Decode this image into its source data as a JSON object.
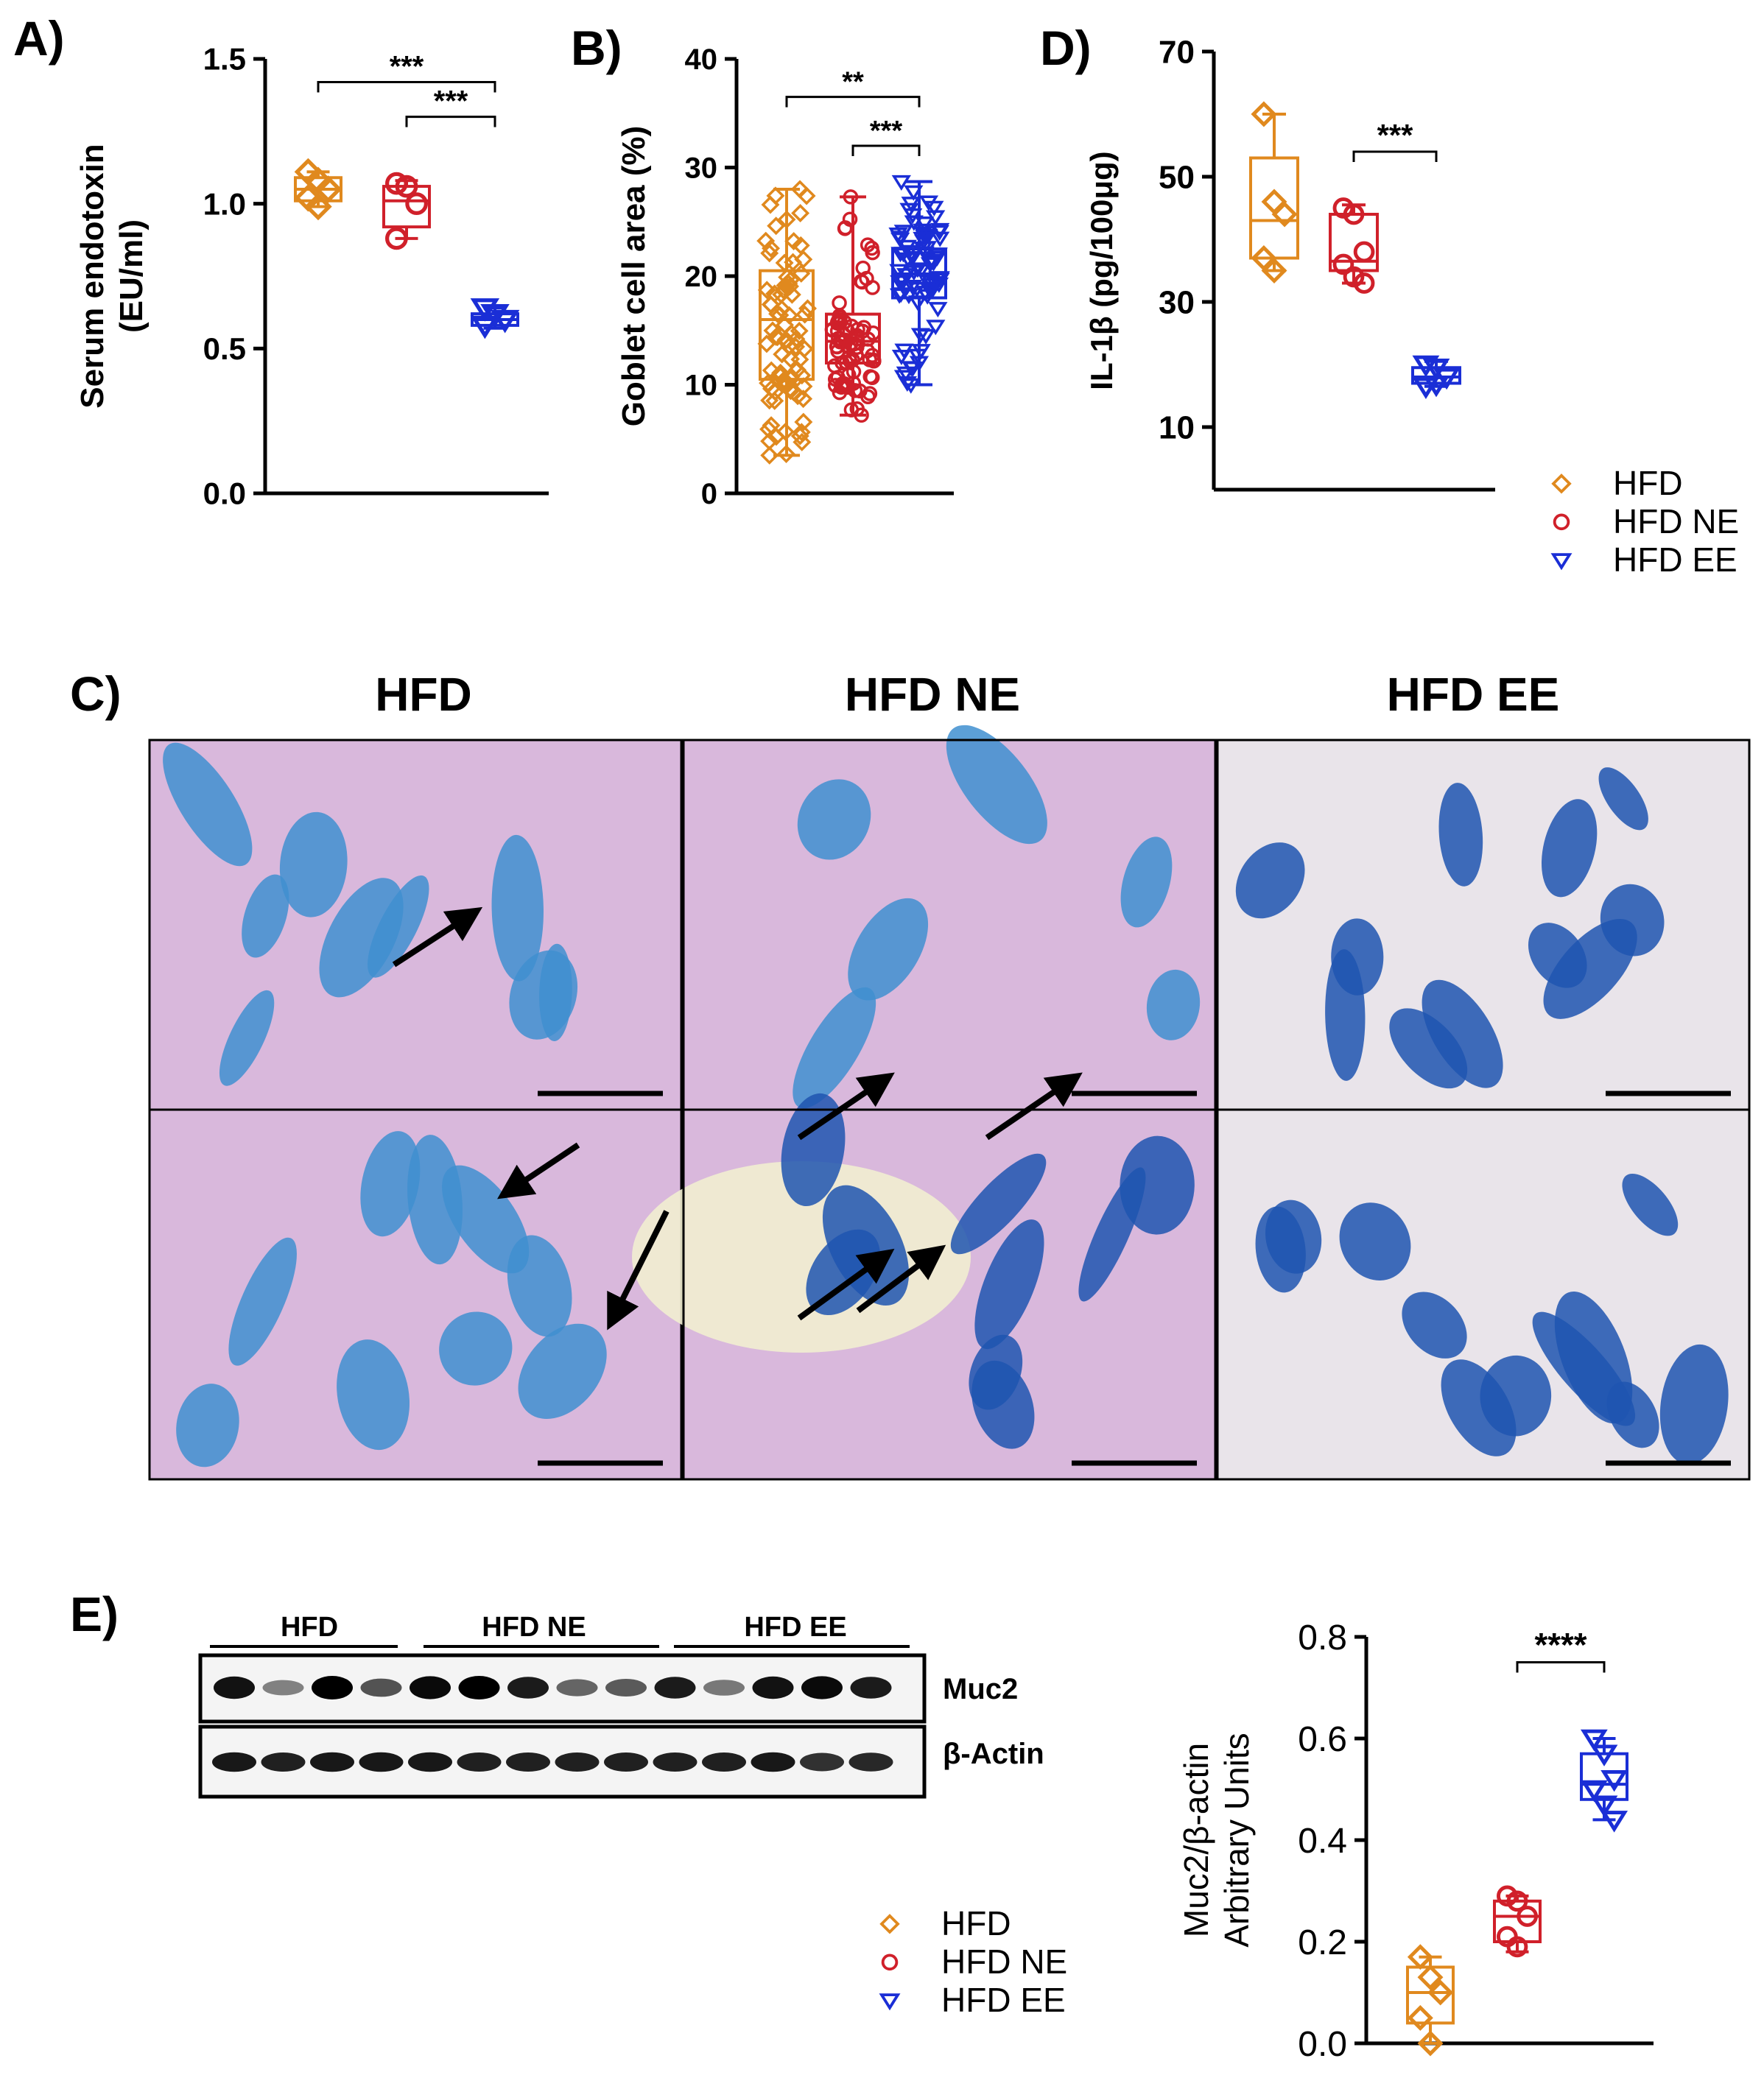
{
  "panel_labels": {
    "A": "A)",
    "B": "B)",
    "C": "C)",
    "D": "D)",
    "E": "E)"
  },
  "groups": [
    "HFD",
    "HFD NE",
    "HFD EE"
  ],
  "colors": {
    "HFD": "#e0891e",
    "HFD NE": "#d0202a",
    "HFD EE": "#1a2ed6"
  },
  "legend_top": {
    "items": [
      "HFD",
      "HFD NE",
      "HFD EE"
    ]
  },
  "legend_bottom": {
    "items": [
      "HFD",
      "HFD NE",
      "HFD EE"
    ]
  },
  "histology": {
    "column_titles": [
      "HFD",
      "HFD NE",
      "HFD EE"
    ],
    "stain_colors": {
      "background": "#d9b8dc",
      "crypt": "#3f8fd0",
      "dark_crypt": "#1e55b0",
      "lumen": "#f1eed0"
    }
  },
  "blot": {
    "group_labels": [
      "HFD",
      "HFD NE",
      "HFD EE"
    ],
    "band_labels": [
      "Muc2",
      "β-Actin"
    ],
    "muc2_intensity": [
      0.9,
      0.3,
      1.0,
      0.55,
      0.95,
      1.0,
      0.85,
      0.45,
      0.5,
      0.85,
      0.35,
      0.9,
      0.95,
      0.85
    ],
    "actin_intensity": [
      0.85,
      0.8,
      0.85,
      0.85,
      0.85,
      0.8,
      0.8,
      0.8,
      0.8,
      0.8,
      0.8,
      0.85,
      0.7,
      0.75
    ]
  },
  "chart_data": [
    {
      "id": "A",
      "type": "box",
      "ylabel": "Serum endotoxin\n(EU/ml)",
      "ylim": [
        0,
        1.5
      ],
      "yticks": [
        "0.0",
        "0.5",
        "1.0",
        "1.5"
      ],
      "series": [
        {
          "name": "HFD",
          "marker": "diamond",
          "box": {
            "min": 0.99,
            "q1": 1.01,
            "median": 1.05,
            "q3": 1.09,
            "max": 1.11
          },
          "points": [
            1.11,
            1.08,
            1.05,
            1.02,
            0.99
          ]
        },
        {
          "name": "HFD NE",
          "marker": "circle",
          "box": {
            "min": 0.88,
            "q1": 0.92,
            "median": 1.01,
            "q3": 1.06,
            "max": 1.08
          },
          "points": [
            1.07,
            1.06,
            1.0,
            0.88
          ]
        },
        {
          "name": "HFD EE",
          "marker": "triangle",
          "box": {
            "min": 0.57,
            "q1": 0.58,
            "median": 0.6,
            "q3": 0.62,
            "max": 0.64
          },
          "points": [
            0.64,
            0.62,
            0.6,
            0.58
          ]
        }
      ],
      "significance": [
        {
          "from": 0,
          "to": 2,
          "label": "***",
          "y": 1.42
        },
        {
          "from": 1,
          "to": 2,
          "label": "***",
          "y": 1.3
        }
      ]
    },
    {
      "id": "B",
      "type": "box",
      "ylabel": "Goblet cell area (%)",
      "ylim": [
        0,
        40
      ],
      "yticks": [
        "0",
        "10",
        "20",
        "30",
        "40"
      ],
      "series": [
        {
          "name": "HFD",
          "marker": "diamond",
          "box": {
            "min": 3.5,
            "q1": 10.5,
            "median": 16,
            "q3": 20.5,
            "max": 28
          },
          "n_points": 80
        },
        {
          "name": "HFD NE",
          "marker": "circle",
          "box": {
            "min": 7.2,
            "q1": 12,
            "median": 14,
            "q3": 16.5,
            "max": 27.3
          },
          "n_points": 80
        },
        {
          "name": "HFD EE",
          "marker": "triangle",
          "box": {
            "min": 10,
            "q1": 18,
            "median": 20.2,
            "q3": 22.5,
            "max": 28.7
          },
          "n_points": 80
        }
      ],
      "significance": [
        {
          "from": 0,
          "to": 2,
          "label": "**",
          "y": 36.5
        },
        {
          "from": 1,
          "to": 2,
          "label": "***",
          "y": 32
        }
      ]
    },
    {
      "id": "D",
      "type": "box",
      "ylabel": "IL-1β (pg/100μg)",
      "ylim": [
        0,
        70
      ],
      "yticks": [
        "10",
        "30",
        "50",
        "70"
      ],
      "series": [
        {
          "name": "HFD",
          "marker": "diamond",
          "box": {
            "min": 35,
            "q1": 37,
            "median": 43,
            "q3": 53,
            "max": 60
          },
          "points": [
            60,
            46,
            44,
            37,
            35
          ]
        },
        {
          "name": "HFD NE",
          "marker": "circle",
          "box": {
            "min": 33,
            "q1": 35,
            "median": 36.5,
            "q3": 44,
            "max": 45.5
          },
          "points": [
            45,
            44,
            38,
            36,
            34,
            33
          ]
        },
        {
          "name": "HFD EE",
          "marker": "triangle",
          "box": {
            "min": 16.5,
            "q1": 17,
            "median": 18,
            "q3": 19.5,
            "max": 20.5
          },
          "points": [
            20,
            19.5,
            18,
            16.5,
            16.8
          ]
        }
      ],
      "significance": [
        {
          "from": 1,
          "to": 2,
          "label": "***",
          "y": 54
        }
      ]
    },
    {
      "id": "E",
      "type": "box",
      "ylabel": "Muc2/β-actin\nArbitrary Units",
      "ylim": [
        0,
        0.8
      ],
      "yticks": [
        "0.0",
        "0.2",
        "0.4",
        "0.6",
        "0.8"
      ],
      "series": [
        {
          "name": "HFD",
          "marker": "diamond",
          "box": {
            "min": 0.0,
            "q1": 0.04,
            "median": 0.1,
            "q3": 0.15,
            "max": 0.17
          },
          "points": [
            0.17,
            0.13,
            0.1,
            0.05,
            0.0
          ]
        },
        {
          "name": "HFD NE",
          "marker": "circle",
          "box": {
            "min": 0.18,
            "q1": 0.2,
            "median": 0.25,
            "q3": 0.28,
            "max": 0.29
          },
          "points": [
            0.29,
            0.28,
            0.25,
            0.21,
            0.19
          ]
        },
        {
          "name": "HFD EE",
          "marker": "triangle",
          "box": {
            "min": 0.44,
            "q1": 0.48,
            "median": 0.51,
            "q3": 0.57,
            "max": 0.6
          },
          "points": [
            0.6,
            0.57,
            0.52,
            0.5,
            0.47,
            0.44
          ]
        }
      ],
      "significance": [
        {
          "from": 1,
          "to": 2,
          "label": "****",
          "y": 0.75
        }
      ]
    }
  ]
}
